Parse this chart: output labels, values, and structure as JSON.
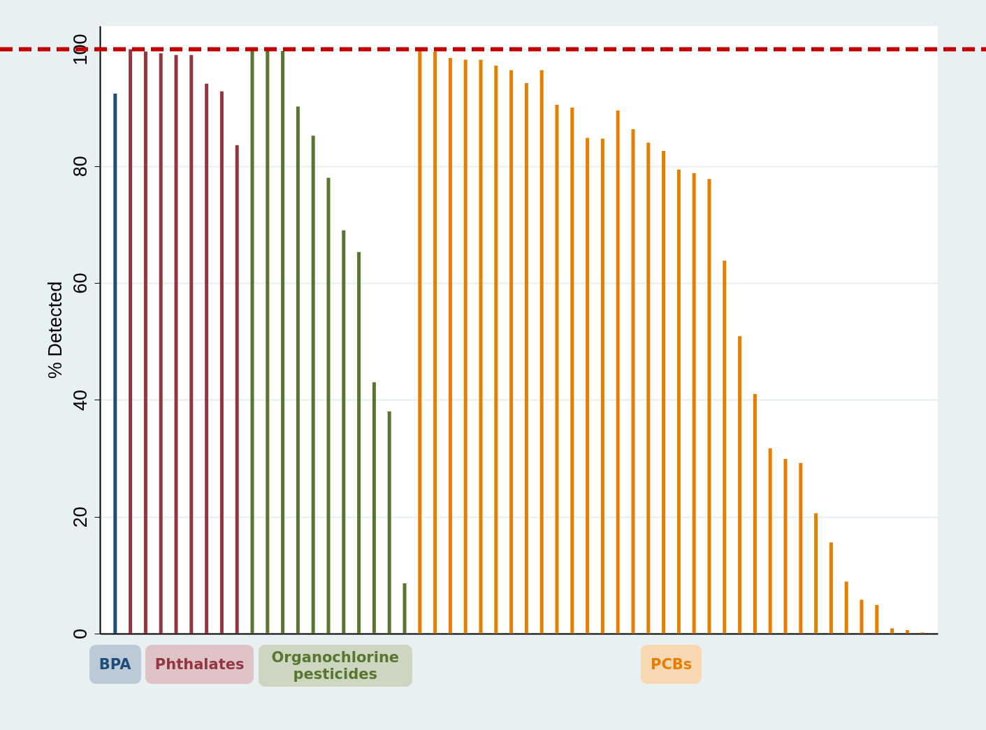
{
  "chart_data": {
    "type": "bar",
    "ylabel": "% Detected",
    "categories": [
      null,
      null,
      null,
      null,
      null,
      null,
      null,
      null,
      null,
      null,
      null,
      null,
      null,
      null,
      null,
      null,
      null,
      null,
      null,
      null,
      null,
      null,
      null,
      null,
      null,
      null,
      null,
      null,
      null,
      null,
      null,
      null,
      null,
      null,
      null,
      null,
      null,
      null,
      null,
      null,
      null,
      null,
      null,
      null,
      null,
      null,
      null,
      null,
      null,
      null,
      null,
      null,
      null,
      null
    ],
    "series": [
      {
        "name": "BPA",
        "color": "#1f4e79",
        "values": [
          92.4,
          null,
          null,
          null,
          null,
          null,
          null,
          null,
          null,
          null,
          null,
          null,
          null,
          null,
          null,
          null,
          null,
          null,
          null,
          null,
          null,
          null,
          null,
          null,
          null,
          null,
          null,
          null,
          null,
          null,
          null,
          null,
          null,
          null,
          null,
          null,
          null,
          null,
          null,
          null,
          null,
          null,
          null,
          null,
          null,
          null,
          null,
          null,
          null,
          null,
          null,
          null,
          null,
          null
        ]
      },
      {
        "name": "Phthalates",
        "color": "#943640",
        "values": [
          null,
          100,
          99.6,
          99.3,
          99,
          99,
          94.1,
          92.8,
          83.6,
          null,
          null,
          null,
          null,
          null,
          null,
          null,
          null,
          null,
          null,
          null,
          null,
          null,
          null,
          null,
          null,
          null,
          null,
          null,
          null,
          null,
          null,
          null,
          null,
          null,
          null,
          null,
          null,
          null,
          null,
          null,
          null,
          null,
          null,
          null,
          null,
          null,
          null,
          null,
          null,
          null,
          null,
          null,
          null,
          null
        ]
      },
      {
        "name": "Organochlorine pesticides",
        "color": "#587630",
        "values": [
          null,
          null,
          null,
          null,
          null,
          null,
          null,
          null,
          null,
          99.7,
          99.7,
          99.7,
          90.2,
          85.2,
          78,
          69,
          65.3,
          43,
          38,
          8.6,
          null,
          null,
          null,
          null,
          null,
          null,
          null,
          null,
          null,
          null,
          null,
          null,
          null,
          null,
          null,
          null,
          null,
          null,
          null,
          null,
          null,
          null,
          null,
          null,
          null,
          null,
          null,
          null,
          null,
          null,
          null,
          null,
          null,
          null
        ]
      },
      {
        "name": "PCBs",
        "color": "#e67e00",
        "values": [
          null,
          null,
          null,
          null,
          null,
          null,
          null,
          null,
          null,
          null,
          null,
          null,
          null,
          null,
          null,
          null,
          null,
          null,
          null,
          null,
          99.9,
          99.6,
          98.5,
          98.2,
          98.2,
          97.2,
          96.4,
          94.2,
          96.4,
          90.5,
          90,
          84.8,
          84.7,
          89.5,
          86.3,
          84,
          82.6,
          79.4,
          78.8,
          77.8,
          63.8,
          50.9,
          41,
          31.7,
          29.9,
          29.2,
          20.6,
          15.6,
          8.9,
          5.8,
          4.9,
          0.9,
          0.6,
          0.2
        ]
      }
    ],
    "ylim": [
      0,
      104
    ],
    "yticks": [
      0,
      20,
      40,
      60,
      80,
      100
    ],
    "grid": "y",
    "legend": "bottom",
    "tick_labels": "y",
    "ref_lines": [
      {
        "axis": "y",
        "value": 100,
        "color": "#c00000",
        "line_style": "dashed"
      }
    ]
  }
}
